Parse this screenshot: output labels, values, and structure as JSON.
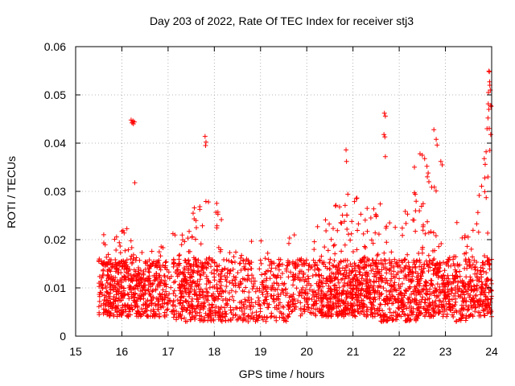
{
  "chart_data": {
    "type": "scatter",
    "title": "Day 203 of 2022, Rate Of TEC Index for receiver stj3",
    "xlabel": "GPS time / hours",
    "ylabel": "ROTI / TECUs",
    "xlim": [
      15,
      24
    ],
    "ylim": [
      0,
      0.06
    ],
    "xticks": [
      15,
      16,
      17,
      18,
      19,
      20,
      21,
      22,
      23,
      24
    ],
    "xtick_labels": [
      "15",
      "16",
      "17",
      "18",
      "19",
      "20",
      "21",
      "22",
      "23",
      "24"
    ],
    "yticks": [
      0,
      0.01,
      0.02,
      0.03,
      0.04,
      0.05,
      0.06
    ],
    "ytick_labels": [
      "0",
      "0.01",
      "0.02",
      "0.03",
      "0.04",
      "0.05",
      "0.06"
    ],
    "grid": true,
    "marker": "+",
    "marker_color": "#ff0000",
    "density": {
      "bin_width_hours": 0.1,
      "bin_start": [
        15.5,
        15.6,
        15.7,
        15.8,
        15.9,
        16.0,
        16.1,
        16.2,
        16.3,
        16.4,
        16.5,
        16.6,
        16.7,
        16.8,
        16.9,
        17.0,
        17.1,
        17.2,
        17.3,
        17.4,
        17.5,
        17.6,
        17.7,
        17.8,
        17.9,
        18.0,
        18.1,
        18.2,
        18.3,
        18.4,
        18.5,
        18.6,
        18.7,
        18.8,
        18.9,
        19.0,
        19.1,
        19.2,
        19.3,
        19.4,
        19.5,
        19.6,
        19.7,
        19.8,
        19.9,
        20.0,
        20.1,
        20.2,
        20.3,
        20.4,
        20.5,
        20.6,
        20.7,
        20.8,
        20.9,
        21.0,
        21.1,
        21.2,
        21.3,
        21.4,
        21.5,
        21.6,
        21.7,
        21.8,
        21.9,
        22.0,
        22.1,
        22.2,
        22.3,
        22.4,
        22.5,
        22.6,
        22.7,
        22.8,
        22.9,
        23.0,
        23.1,
        23.2,
        23.3,
        23.4,
        23.5,
        23.6,
        23.7,
        23.8,
        23.9
      ],
      "points_per_bin": [
        30,
        40,
        45,
        45,
        45,
        45,
        40,
        40,
        40,
        40,
        40,
        35,
        35,
        35,
        30,
        10,
        30,
        40,
        45,
        45,
        45,
        40,
        35,
        35,
        30,
        35,
        35,
        25,
        20,
        20,
        20,
        25,
        25,
        20,
        20,
        20,
        25,
        25,
        25,
        20,
        20,
        25,
        25,
        25,
        25,
        20,
        30,
        30,
        35,
        40,
        45,
        45,
        45,
        45,
        50,
        45,
        45,
        45,
        45,
        45,
        40,
        35,
        35,
        35,
        35,
        35,
        35,
        40,
        40,
        45,
        40,
        40,
        40,
        40,
        35,
        35,
        30,
        30,
        35,
        35,
        40,
        35,
        35,
        40,
        45
      ],
      "ymin_per_bin": [
        0.004,
        0.004,
        0.004,
        0.004,
        0.004,
        0.004,
        0.004,
        0.004,
        0.004,
        0.004,
        0.004,
        0.004,
        0.004,
        0.004,
        0.004,
        0.004,
        0.003,
        0.003,
        0.003,
        0.003,
        0.003,
        0.003,
        0.003,
        0.003,
        0.003,
        0.003,
        0.003,
        0.003,
        0.003,
        0.003,
        0.003,
        0.003,
        0.003,
        0.003,
        0.003,
        0.003,
        0.003,
        0.003,
        0.003,
        0.003,
        0.003,
        0.004,
        0.004,
        0.004,
        0.004,
        0.004,
        0.004,
        0.004,
        0.004,
        0.004,
        0.004,
        0.004,
        0.004,
        0.004,
        0.004,
        0.004,
        0.004,
        0.004,
        0.004,
        0.004,
        0.004,
        0.003,
        0.003,
        0.003,
        0.003,
        0.004,
        0.003,
        0.003,
        0.003,
        0.004,
        0.004,
        0.004,
        0.004,
        0.004,
        0.004,
        0.004,
        0.004,
        0.003,
        0.003,
        0.003,
        0.004,
        0.004,
        0.004,
        0.004,
        0.004
      ],
      "ymax_per_bin": [
        0.016,
        0.022,
        0.025,
        0.021,
        0.022,
        0.022,
        0.025,
        0.019,
        0.02,
        0.018,
        0.017,
        0.019,
        0.018,
        0.019,
        0.016,
        0.015,
        0.022,
        0.026,
        0.023,
        0.028,
        0.03,
        0.027,
        0.025,
        0.03,
        0.019,
        0.03,
        0.027,
        0.021,
        0.019,
        0.018,
        0.017,
        0.019,
        0.018,
        0.02,
        0.022,
        0.02,
        0.018,
        0.017,
        0.017,
        0.016,
        0.018,
        0.021,
        0.022,
        0.018,
        0.018,
        0.017,
        0.022,
        0.023,
        0.023,
        0.025,
        0.031,
        0.028,
        0.027,
        0.03,
        0.028,
        0.029,
        0.027,
        0.025,
        0.027,
        0.029,
        0.028,
        0.02,
        0.024,
        0.021,
        0.023,
        0.025,
        0.026,
        0.03,
        0.038,
        0.032,
        0.028,
        0.036,
        0.034,
        0.028,
        0.02,
        0.02,
        0.023,
        0.028,
        0.026,
        0.022,
        0.024,
        0.025,
        0.032,
        0.035,
        0.055
      ]
    },
    "series": [
      {
        "name": "notable high values",
        "points": [
          [
            16.2,
            0.0448
          ],
          [
            16.22,
            0.0442
          ],
          [
            16.24,
            0.0446
          ],
          [
            16.25,
            0.044
          ],
          [
            16.27,
            0.0444
          ],
          [
            16.28,
            0.0318
          ],
          [
            17.8,
            0.0414
          ],
          [
            17.82,
            0.0402
          ],
          [
            17.81,
            0.0395
          ],
          [
            20.85,
            0.0386
          ],
          [
            20.86,
            0.0362
          ],
          [
            21.68,
            0.0462
          ],
          [
            21.7,
            0.0456
          ],
          [
            21.67,
            0.0418
          ],
          [
            21.69,
            0.0413
          ],
          [
            21.7,
            0.0372
          ],
          [
            22.75,
            0.0428
          ],
          [
            22.8,
            0.0408
          ],
          [
            22.82,
            0.0396
          ],
          [
            22.45,
            0.0378
          ],
          [
            22.5,
            0.0375
          ],
          [
            22.55,
            0.0368
          ],
          [
            22.6,
            0.0352
          ],
          [
            22.9,
            0.0362
          ],
          [
            22.93,
            0.0355
          ],
          [
            23.84,
            0.0368
          ],
          [
            23.86,
            0.0356
          ],
          [
            23.88,
            0.0382
          ],
          [
            23.85,
            0.0328
          ],
          [
            23.9,
            0.043
          ],
          [
            23.92,
            0.0452
          ],
          [
            23.94,
            0.047
          ],
          [
            23.93,
            0.0505
          ],
          [
            23.96,
            0.052
          ],
          [
            23.95,
            0.0548
          ],
          [
            23.97,
            0.051
          ],
          [
            23.98,
            0.0418
          ],
          [
            23.96,
            0.0385
          ],
          [
            23.98,
            0.0478
          ]
        ]
      }
    ]
  }
}
